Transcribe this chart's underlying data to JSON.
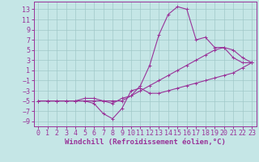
{
  "xlabel": "Windchill (Refroidissement éolien,°C)",
  "background_color": "#c5e6e6",
  "grid_color": "#a0c8c8",
  "line_color": "#993399",
  "x_ticks": [
    0,
    1,
    2,
    3,
    4,
    5,
    6,
    7,
    8,
    9,
    10,
    11,
    12,
    13,
    14,
    15,
    16,
    17,
    18,
    19,
    20,
    21,
    22,
    23
  ],
  "y_ticks": [
    -9,
    -7,
    -5,
    -3,
    -1,
    1,
    3,
    5,
    7,
    9,
    11,
    13
  ],
  "xlim": [
    -0.5,
    23.5
  ],
  "ylim": [
    -10,
    14.5
  ],
  "line1_x": [
    0,
    1,
    2,
    3,
    4,
    5,
    6,
    7,
    8,
    9,
    10,
    11,
    12,
    13,
    14,
    15,
    16,
    17,
    18,
    19,
    20,
    21,
    22,
    23
  ],
  "line1_y": [
    -5,
    -5,
    -5,
    -5,
    -5,
    -4.5,
    -4.5,
    -5,
    -5,
    -5,
    -4,
    -3,
    -2,
    -1,
    0,
    1,
    2,
    3,
    4,
    5,
    5.5,
    5,
    3.5,
    2.5
  ],
  "line2_x": [
    0,
    1,
    2,
    3,
    4,
    5,
    6,
    7,
    8,
    9,
    10,
    11,
    12,
    13,
    14,
    15,
    16,
    17,
    18,
    19,
    20,
    21,
    22,
    23
  ],
  "line2_y": [
    -5,
    -5,
    -5,
    -5,
    -5,
    -5,
    -5.5,
    -7.5,
    -8.5,
    -6.5,
    -3,
    -2.5,
    -3.5,
    -3.5,
    -3,
    -2.5,
    -2,
    -1.5,
    -1,
    -0.5,
    0,
    0.5,
    1.5,
    2.5
  ],
  "line3_x": [
    0,
    1,
    2,
    3,
    4,
    5,
    6,
    7,
    8,
    9,
    10,
    11,
    12,
    13,
    14,
    15,
    16,
    17,
    18,
    19,
    20,
    21,
    22,
    23
  ],
  "line3_y": [
    -5,
    -5,
    -5,
    -5,
    -5,
    -5,
    -5,
    -5,
    -5.5,
    -4.5,
    -4,
    -2,
    2,
    8,
    12,
    13.5,
    13,
    7,
    7.5,
    5.5,
    5.5,
    3.5,
    2.5,
    2.5
  ],
  "xlabel_fontsize": 6.5,
  "tick_fontsize": 6,
  "marker_size": 3,
  "linewidth": 0.8,
  "figsize": [
    3.2,
    2.0
  ],
  "dpi": 100
}
